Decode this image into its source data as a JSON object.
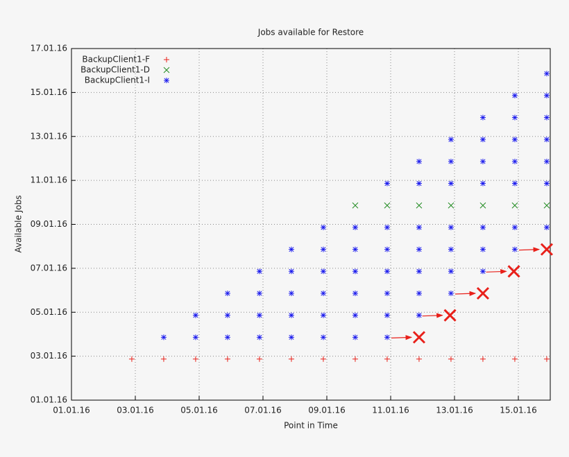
{
  "chart_data": {
    "type": "scatter",
    "title": "Jobs available for Restore",
    "x_label": "Point in Time",
    "y_label": "Available Jobs",
    "xlim": [
      1,
      16
    ],
    "ylim": [
      1,
      17
    ],
    "xticks": [
      {
        "value": 1,
        "label": "01.01.16"
      },
      {
        "value": 3,
        "label": "03.01.16"
      },
      {
        "value": 5,
        "label": "05.01.16"
      },
      {
        "value": 7,
        "label": "07.01.16"
      },
      {
        "value": 9,
        "label": "09.01.16"
      },
      {
        "value": 11,
        "label": "11.01.16"
      },
      {
        "value": 13,
        "label": "13.01.16"
      },
      {
        "value": 15,
        "label": "15.01.16"
      }
    ],
    "yticks": [
      {
        "value": 1,
        "label": "01.01.16"
      },
      {
        "value": 3,
        "label": "03.01.16"
      },
      {
        "value": 5,
        "label": "05.01.16"
      },
      {
        "value": 7,
        "label": "07.01.16"
      },
      {
        "value": 9,
        "label": "09.01.16"
      },
      {
        "value": 11,
        "label": "11.01.16"
      },
      {
        "value": 13,
        "label": "13.01.16"
      },
      {
        "value": 15,
        "label": "15.01.16"
      },
      {
        "value": 17,
        "label": "17.01.16"
      }
    ],
    "grid": true,
    "legend": "top-left",
    "series": [
      {
        "name": "BackupClient1-F",
        "color": "#e8201a",
        "marker": "plus",
        "x": [
          2.89,
          3.89,
          4.89,
          5.89,
          6.89,
          7.89,
          8.89,
          9.89,
          10.89,
          11.89,
          12.89,
          13.89,
          14.89,
          15.89
        ],
        "y": [
          2.87,
          2.87,
          2.87,
          2.87,
          2.87,
          2.87,
          2.87,
          2.87,
          2.87,
          2.87,
          2.87,
          2.87,
          2.87,
          2.87
        ]
      },
      {
        "name": "BackupClient1-D",
        "color": "#228b22",
        "marker": "cross",
        "x": [
          9.89,
          10.89,
          11.89,
          12.89,
          13.89,
          14.89,
          15.89
        ],
        "y": [
          9.86,
          9.86,
          9.86,
          9.86,
          9.86,
          9.86,
          9.86
        ]
      },
      {
        "name": "BackupClient1-I",
        "color": "#1a1aee",
        "marker": "star",
        "x": [
          3.89,
          4.89,
          4.89,
          5.89,
          5.89,
          5.89,
          6.89,
          6.89,
          6.89,
          6.89,
          7.89,
          7.89,
          7.89,
          7.89,
          7.89,
          8.89,
          8.89,
          8.89,
          8.89,
          8.89,
          8.89,
          9.89,
          9.89,
          9.89,
          9.89,
          9.89,
          9.89,
          10.89,
          10.89,
          10.89,
          10.89,
          10.89,
          10.89,
          10.89,
          11.89,
          11.89,
          11.89,
          11.89,
          11.89,
          11.89,
          11.89,
          12.89,
          12.89,
          12.89,
          12.89,
          12.89,
          12.89,
          12.89,
          13.89,
          13.89,
          13.89,
          13.89,
          13.89,
          13.89,
          13.89,
          14.89,
          14.89,
          14.89,
          14.89,
          14.89,
          14.89,
          14.89,
          15.89,
          15.89,
          15.89,
          15.89,
          15.89,
          15.89,
          15.89
        ],
        "y": [
          3.86,
          3.86,
          4.86,
          3.86,
          4.86,
          5.86,
          3.86,
          4.86,
          5.86,
          6.86,
          3.86,
          4.86,
          5.86,
          6.86,
          7.86,
          3.86,
          4.86,
          5.86,
          6.86,
          7.86,
          8.86,
          3.86,
          4.86,
          5.86,
          6.86,
          7.86,
          8.86,
          3.86,
          4.86,
          5.86,
          6.86,
          7.86,
          8.86,
          10.86,
          4.86,
          5.86,
          6.86,
          7.86,
          8.86,
          10.86,
          11.86,
          5.86,
          6.86,
          7.86,
          8.86,
          10.86,
          11.86,
          12.86,
          6.86,
          7.86,
          8.86,
          10.86,
          11.86,
          12.86,
          13.86,
          7.86,
          8.86,
          10.86,
          11.86,
          12.86,
          13.86,
          14.86,
          8.86,
          10.86,
          11.86,
          12.86,
          13.86,
          14.86,
          15.86
        ]
      }
    ],
    "markers": {
      "color": "#e8201a",
      "x": [
        11.89,
        12.86,
        13.89,
        14.86,
        15.89
      ],
      "y": [
        3.86,
        4.86,
        5.86,
        6.86,
        7.86
      ]
    }
  }
}
